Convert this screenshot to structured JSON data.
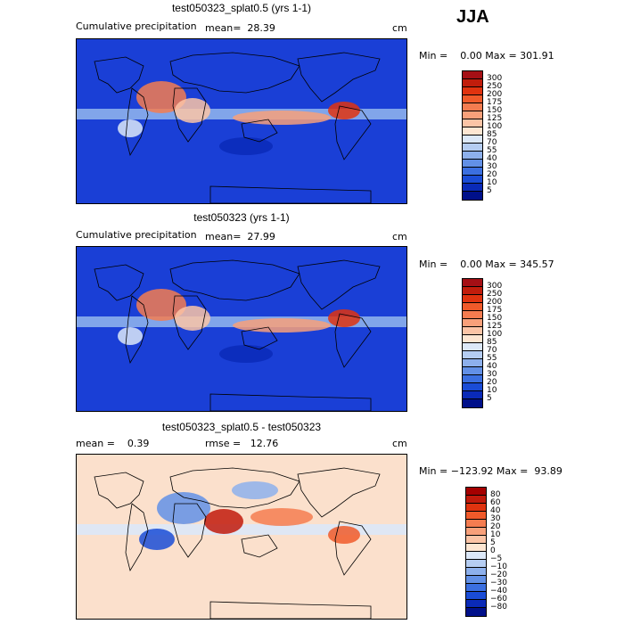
{
  "season": "JJA",
  "panels": [
    {
      "title": "test050323_splat0.5 (yrs 1-1)",
      "left_label": "Cumulative precipitation",
      "center_label": "mean=  28.39",
      "unit": "cm",
      "minmax": "Min =    0.00 Max = 301.91",
      "palette": "precip",
      "bg_color": "#1a3fd6"
    },
    {
      "title": "test050323 (yrs 1-1)",
      "left_label": "Cumulative precipitation",
      "center_label": "mean=  27.99",
      "unit": "cm",
      "minmax": "Min =    0.00 Max = 345.57",
      "palette": "precip",
      "bg_color": "#1a3fd6"
    },
    {
      "title": "test050323_splat0.5 - test050323",
      "left_label": "mean =    0.39",
      "center_label": "rmse =   12.76",
      "unit": "cm",
      "minmax": "Min = −123.92 Max =  93.89",
      "palette": "diff",
      "bg_color": "#fbe0cc"
    }
  ],
  "colorbars": {
    "precip": {
      "labels": [
        "300",
        "250",
        "200",
        "175",
        "150",
        "125",
        "100",
        "85",
        "70",
        "55",
        "40",
        "30",
        "20",
        "10",
        "5"
      ],
      "colors": [
        "#a50f15",
        "#c11d0c",
        "#e0330f",
        "#f05a2a",
        "#f47c50",
        "#f8a07a",
        "#fbc4a6",
        "#fde6d2",
        "#dce8f8",
        "#b5cdf2",
        "#8db0ec",
        "#6290e6",
        "#3b6fe0",
        "#1a4cd6",
        "#0a2ab8",
        "#00108a"
      ]
    },
    "diff": {
      "labels": [
        "80",
        "60",
        "40",
        "30",
        "20",
        "10",
        "5",
        "0",
        "−5",
        "−10",
        "−20",
        "−30",
        "−40",
        "−60",
        "−80"
      ],
      "colors": [
        "#a50000",
        "#c11a0c",
        "#e0330f",
        "#f05a2a",
        "#f47c50",
        "#f8a07a",
        "#fbc4a6",
        "#fde6d2",
        "#dce8f8",
        "#b5cdf2",
        "#8db0ec",
        "#6290e6",
        "#3b6fe0",
        "#1a4cd6",
        "#0a2ab8",
        "#00108a"
      ]
    }
  }
}
